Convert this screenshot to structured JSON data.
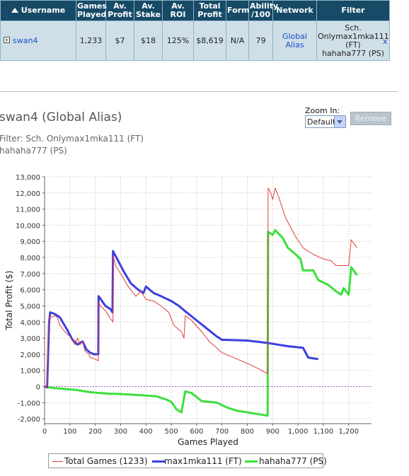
{
  "table": {
    "headers": [
      "Username",
      "Games Played",
      "Av. Profit",
      "Av. Stake",
      "Av. ROI",
      "Total Profit",
      "Form",
      "Ability /100",
      "Network",
      "Filter"
    ],
    "row": {
      "username": "swan4",
      "games_played": "1,233",
      "av_profit": "$7",
      "av_stake": "$18",
      "av_roi": "125%",
      "total_profit": "$8,619",
      "form": "N/A",
      "ability": "79",
      "network": "Global Alias",
      "filter_lines": [
        "Sch.",
        "Onlymax1mka111",
        "(FT)",
        "hahaha777 (PS)"
      ],
      "remove_label": "x"
    }
  },
  "chart_header": {
    "title": "swan4 (Global Alias)",
    "filter_line1": "Filter: Sch. Onlymax1mka111 (FT)",
    "filter_line2": "hahaha777 (PS)"
  },
  "zoom": {
    "label": "Zoom In:",
    "selected": "Default"
  },
  "remove_button": "Remove",
  "chart_data": {
    "type": "line",
    "xlabel": "Games Played",
    "ylabel": "Total Profit ($)",
    "xlim": [
      0,
      1290
    ],
    "ylim": [
      -2300,
      13000
    ],
    "xticks": [
      0,
      100,
      200,
      300,
      400,
      500,
      600,
      700,
      800,
      900,
      1000,
      1100,
      1200
    ],
    "xtick_labels": [
      "0",
      "100",
      "200",
      "300",
      "400",
      "500",
      "600",
      "700",
      "800",
      "900",
      "1,000",
      "1,100",
      "1,200"
    ],
    "yticks": [
      -2000,
      -1000,
      0,
      1000,
      2000,
      3000,
      4000,
      5000,
      6000,
      7000,
      8000,
      9000,
      10000,
      11000,
      12000,
      13000
    ],
    "ytick_labels": [
      "-2,000",
      "-1,000",
      "0",
      "1,000",
      "2,000",
      "3,000",
      "4,000",
      "5,000",
      "6,000",
      "7,000",
      "8,000",
      "9,000",
      "10,000",
      "11,000",
      "12,000",
      "13,000"
    ],
    "grid": true,
    "legend_position": "bottom",
    "series": [
      {
        "name": "Total Games (1233)",
        "color": "#e03c3c",
        "width": 1,
        "points": [
          [
            0,
            0
          ],
          [
            10,
            -50
          ],
          [
            15,
            4000
          ],
          [
            20,
            4400
          ],
          [
            30,
            4300
          ],
          [
            40,
            4400
          ],
          [
            50,
            4300
          ],
          [
            60,
            3800
          ],
          [
            80,
            3400
          ],
          [
            100,
            3100
          ],
          [
            120,
            2600
          ],
          [
            130,
            3000
          ],
          [
            140,
            2600
          ],
          [
            150,
            2800
          ],
          [
            160,
            2200
          ],
          [
            175,
            2000
          ],
          [
            180,
            1800
          ],
          [
            200,
            1700
          ],
          [
            212,
            1600
          ],
          [
            213,
            5200
          ],
          [
            220,
            5000
          ],
          [
            240,
            4700
          ],
          [
            260,
            4200
          ],
          [
            270,
            4000
          ],
          [
            271,
            8100
          ],
          [
            280,
            7500
          ],
          [
            300,
            7000
          ],
          [
            330,
            6200
          ],
          [
            360,
            5600
          ],
          [
            380,
            5900
          ],
          [
            400,
            5400
          ],
          [
            430,
            5300
          ],
          [
            460,
            5000
          ],
          [
            490,
            4600
          ],
          [
            510,
            3800
          ],
          [
            540,
            3400
          ],
          [
            550,
            3000
          ],
          [
            555,
            4400
          ],
          [
            580,
            4100
          ],
          [
            620,
            3400
          ],
          [
            650,
            2800
          ],
          [
            700,
            2100
          ],
          [
            760,
            1700
          ],
          [
            820,
            1300
          ],
          [
            880,
            800
          ],
          [
            882,
            12300
          ],
          [
            890,
            12100
          ],
          [
            900,
            11600
          ],
          [
            910,
            12300
          ],
          [
            925,
            11700
          ],
          [
            950,
            10500
          ],
          [
            990,
            9300
          ],
          [
            1020,
            8600
          ],
          [
            1060,
            8200
          ],
          [
            1100,
            7900
          ],
          [
            1130,
            7800
          ],
          [
            1150,
            7500
          ],
          [
            1200,
            7500
          ],
          [
            1210,
            9100
          ],
          [
            1233,
            8600
          ]
        ]
      },
      {
        "name": "max1mka111 (FT)",
        "color": "#3b40e0",
        "width": 3,
        "points": [
          [
            0,
            0
          ],
          [
            10,
            -50
          ],
          [
            18,
            4000
          ],
          [
            22,
            4600
          ],
          [
            40,
            4500
          ],
          [
            60,
            4300
          ],
          [
            90,
            3500
          ],
          [
            110,
            2900
          ],
          [
            130,
            2600
          ],
          [
            140,
            2700
          ],
          [
            150,
            2800
          ],
          [
            165,
            2300
          ],
          [
            180,
            2100
          ],
          [
            195,
            2000
          ],
          [
            212,
            2000
          ],
          [
            213,
            5600
          ],
          [
            240,
            5000
          ],
          [
            260,
            4800
          ],
          [
            268,
            4600
          ],
          [
            270,
            8400
          ],
          [
            290,
            7800
          ],
          [
            310,
            7200
          ],
          [
            340,
            6400
          ],
          [
            370,
            6000
          ],
          [
            390,
            5800
          ],
          [
            400,
            6200
          ],
          [
            430,
            5800
          ],
          [
            460,
            5600
          ],
          [
            500,
            5300
          ],
          [
            530,
            5000
          ],
          [
            560,
            4600
          ],
          [
            600,
            4100
          ],
          [
            640,
            3600
          ],
          [
            680,
            3100
          ],
          [
            700,
            2900
          ],
          [
            800,
            2850
          ],
          [
            880,
            2700
          ],
          [
            960,
            2500
          ],
          [
            1020,
            2400
          ],
          [
            1040,
            1800
          ],
          [
            1080,
            1700
          ]
        ]
      },
      {
        "name": "hahaha777 (PS)",
        "color": "#3be03b",
        "width": 3,
        "points": [
          [
            0,
            0
          ],
          [
            10,
            -50
          ],
          [
            15,
            -50
          ],
          [
            40,
            -100
          ],
          [
            80,
            -150
          ],
          [
            120,
            -200
          ],
          [
            180,
            -350
          ],
          [
            220,
            -400
          ],
          [
            260,
            -450
          ],
          [
            280,
            -450
          ],
          [
            340,
            -500
          ],
          [
            440,
            -600
          ],
          [
            480,
            -800
          ],
          [
            500,
            -950
          ],
          [
            520,
            -1400
          ],
          [
            540,
            -1600
          ],
          [
            555,
            -300
          ],
          [
            580,
            -400
          ],
          [
            620,
            -900
          ],
          [
            680,
            -1000
          ],
          [
            720,
            -1300
          ],
          [
            760,
            -1500
          ],
          [
            800,
            -1600
          ],
          [
            840,
            -1700
          ],
          [
            880,
            -1800
          ],
          [
            882,
            9600
          ],
          [
            900,
            9400
          ],
          [
            910,
            9700
          ],
          [
            940,
            9200
          ],
          [
            960,
            8600
          ],
          [
            990,
            8200
          ],
          [
            1010,
            7900
          ],
          [
            1020,
            7200
          ],
          [
            1060,
            7200
          ],
          [
            1080,
            6600
          ],
          [
            1120,
            6300
          ],
          [
            1150,
            5900
          ],
          [
            1170,
            5700
          ],
          [
            1180,
            6100
          ],
          [
            1200,
            5700
          ],
          [
            1210,
            7400
          ],
          [
            1233,
            6900
          ]
        ]
      }
    ]
  }
}
